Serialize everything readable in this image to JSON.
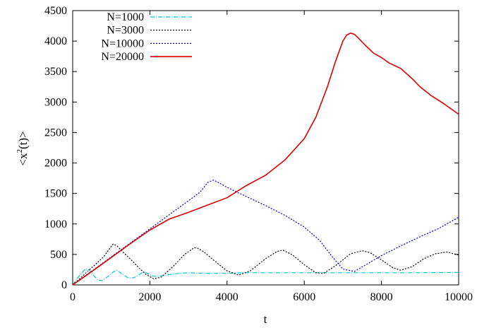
{
  "chart_data": {
    "type": "line",
    "xlabel": "t",
    "ylabel_main": "<x",
    "ylabel_sup": "2",
    "ylabel_rest": "(t)>",
    "xlim": [
      0,
      10000
    ],
    "ylim": [
      0,
      4500
    ],
    "xticks": [
      0,
      2000,
      4000,
      6000,
      8000,
      10000
    ],
    "yticks": [
      0,
      500,
      1000,
      1500,
      2000,
      2500,
      3000,
      3500,
      4000,
      4500
    ],
    "legend_position": "top-left",
    "grid": false,
    "series": [
      {
        "name": "N=1000",
        "color": "#00c8c8",
        "dash": "6,2,1,2",
        "x": [
          0,
          150,
          300,
          380,
          450,
          550,
          650,
          750,
          900,
          1050,
          1150,
          1300,
          1450,
          1600,
          1750,
          1850,
          1950,
          2100,
          2300,
          2600,
          3000,
          3400,
          3800,
          4200,
          4600,
          5000,
          6000,
          7000,
          8000,
          9000,
          10000
        ],
        "y": [
          0,
          130,
          240,
          270,
          230,
          150,
          80,
          70,
          130,
          210,
          240,
          170,
          110,
          120,
          180,
          220,
          180,
          140,
          150,
          180,
          200,
          190,
          190,
          195,
          200,
          200,
          200,
          200,
          200,
          200,
          205
        ]
      },
      {
        "name": "N=3000",
        "color": "#000000",
        "dash": "2,2",
        "x": [
          0,
          200,
          400,
          600,
          800,
          950,
          1050,
          1150,
          1300,
          1500,
          1700,
          1900,
          2100,
          2300,
          2600,
          2900,
          3150,
          3250,
          3400,
          3700,
          4000,
          4300,
          4600,
          5000,
          5300,
          5450,
          5700,
          6000,
          6300,
          6500,
          6800,
          7200,
          7500,
          7700,
          8000,
          8300,
          8500,
          8800,
          9100,
          9400,
          9700,
          10000
        ],
        "y": [
          0,
          110,
          230,
          340,
          460,
          590,
          670,
          640,
          540,
          420,
          290,
          170,
          100,
          130,
          300,
          500,
          610,
          600,
          540,
          380,
          230,
          160,
          230,
          430,
          550,
          570,
          490,
          330,
          200,
          190,
          310,
          510,
          560,
          530,
          410,
          280,
          240,
          300,
          430,
          510,
          540,
          490
        ]
      },
      {
        "name": "N=10000",
        "color": "#0000dd",
        "dash": "2,2",
        "x": [
          0,
          500,
          1000,
          1500,
          2000,
          2500,
          3000,
          3300,
          3500,
          3650,
          3800,
          4000,
          4500,
          5000,
          5500,
          6000,
          6400,
          6700,
          7000,
          7300,
          7600,
          8000,
          8500,
          9000,
          9500,
          10000
        ],
        "y": [
          0,
          230,
          460,
          690,
          920,
          1150,
          1380,
          1520,
          1680,
          1720,
          1670,
          1600,
          1450,
          1300,
          1140,
          950,
          730,
          480,
          260,
          220,
          330,
          480,
          640,
          790,
          930,
          1110
        ]
      },
      {
        "name": "N=20000",
        "color": "#dd0000",
        "dash": "",
        "x": [
          0,
          500,
          1000,
          1500,
          2000,
          2500,
          3000,
          3500,
          4000,
          4500,
          5000,
          5500,
          6000,
          6300,
          6600,
          6800,
          7000,
          7100,
          7200,
          7300,
          7400,
          7600,
          7800,
          8000,
          8200,
          8500,
          8800,
          9000,
          9300,
          9600,
          10000
        ],
        "y": [
          0,
          220,
          450,
          680,
          900,
          1080,
          1190,
          1310,
          1430,
          1630,
          1800,
          2050,
          2400,
          2750,
          3250,
          3650,
          4000,
          4100,
          4130,
          4110,
          4050,
          3920,
          3800,
          3730,
          3640,
          3550,
          3380,
          3250,
          3100,
          2980,
          2800
        ]
      }
    ]
  }
}
